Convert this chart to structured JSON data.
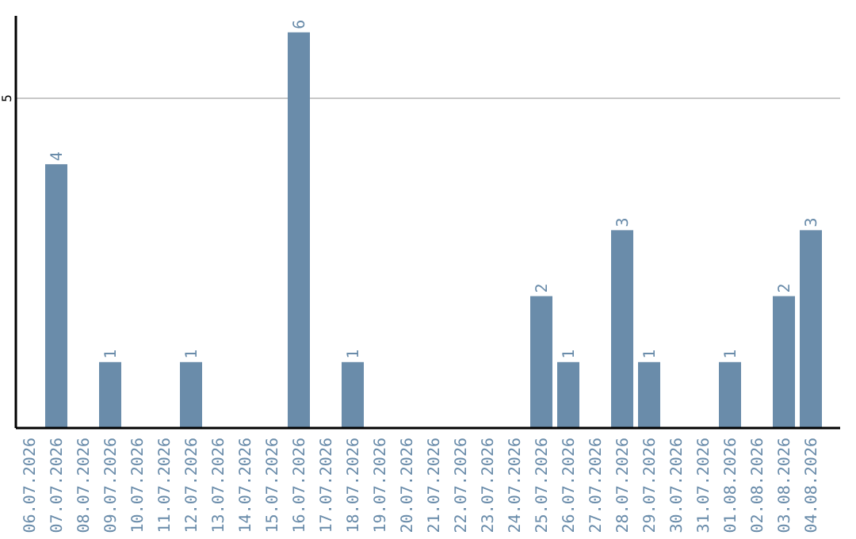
{
  "chart_data": {
    "type": "bar",
    "categories": [
      "06.07.2026",
      "07.07.2026",
      "08.07.2026",
      "09.07.2026",
      "10.07.2026",
      "11.07.2026",
      "12.07.2026",
      "13.07.2026",
      "14.07.2026",
      "15.07.2026",
      "16.07.2026",
      "17.07.2026",
      "18.07.2026",
      "19.07.2026",
      "20.07.2026",
      "21.07.2026",
      "22.07.2026",
      "23.07.2026",
      "24.07.2026",
      "25.07.2026",
      "26.07.2026",
      "27.07.2026",
      "28.07.2026",
      "29.07.2026",
      "30.07.2026",
      "31.07.2026",
      "01.08.2026",
      "02.08.2026",
      "03.08.2026",
      "04.08.2026"
    ],
    "values": [
      0,
      4,
      0,
      1,
      0,
      0,
      1,
      0,
      0,
      0,
      6,
      0,
      1,
      0,
      0,
      0,
      0,
      0,
      0,
      2,
      1,
      0,
      3,
      1,
      0,
      0,
      1,
      0,
      2,
      3
    ],
    "value_labels": [
      null,
      "4",
      null,
      "1",
      null,
      null,
      "1",
      null,
      null,
      null,
      "6",
      null,
      "1",
      null,
      null,
      null,
      null,
      null,
      null,
      "2",
      "1",
      null,
      "3",
      "1",
      null,
      null,
      "1",
      null,
      "2",
      "3"
    ],
    "color": "#6a8caa",
    "ylim": [
      0,
      6.25
    ],
    "yticks": [
      5
    ],
    "grid": "y"
  }
}
